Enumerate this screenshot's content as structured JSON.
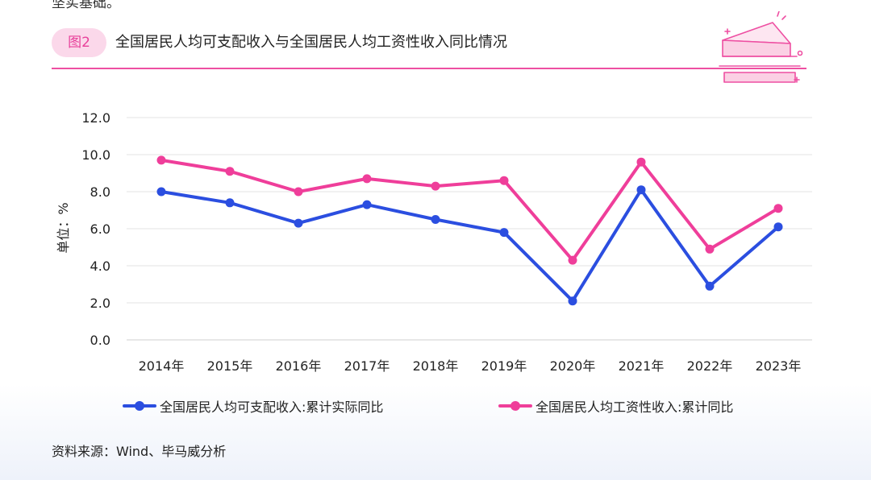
{
  "header": {
    "top_fragment": "坚实基础。",
    "figure_label": "图2",
    "figure_title": "全国居民人均可支配收入与全国居民人均工资性收入同比情况"
  },
  "chart_data": {
    "type": "line",
    "categories": [
      "2014年",
      "2015年",
      "2016年",
      "2017年",
      "2018年",
      "2019年",
      "2020年",
      "2021年",
      "2022年",
      "2023年"
    ],
    "series": [
      {
        "name": "全国居民人均可支配收入:累计实际同比",
        "color": "#2b4ee0",
        "values": [
          8.0,
          7.4,
          6.3,
          7.3,
          6.5,
          5.8,
          2.1,
          8.1,
          2.9,
          6.1
        ]
      },
      {
        "name": "全国居民人均工资性收入:累计同比",
        "color": "#ef3e9a",
        "values": [
          9.7,
          9.1,
          8.0,
          8.7,
          8.3,
          8.6,
          4.3,
          9.6,
          4.9,
          7.1
        ]
      }
    ],
    "ylabel": "单位：%",
    "ylim": [
      0,
      12
    ],
    "yticks": [
      "0.0",
      "2.0",
      "4.0",
      "6.0",
      "8.0",
      "10.0",
      "12.0"
    ],
    "grid": true,
    "legend_position": "bottom"
  },
  "footer": {
    "source": "资料来源：Wind、毕马威分析"
  },
  "icons": {
    "decoration": "cake-slice-icon"
  }
}
